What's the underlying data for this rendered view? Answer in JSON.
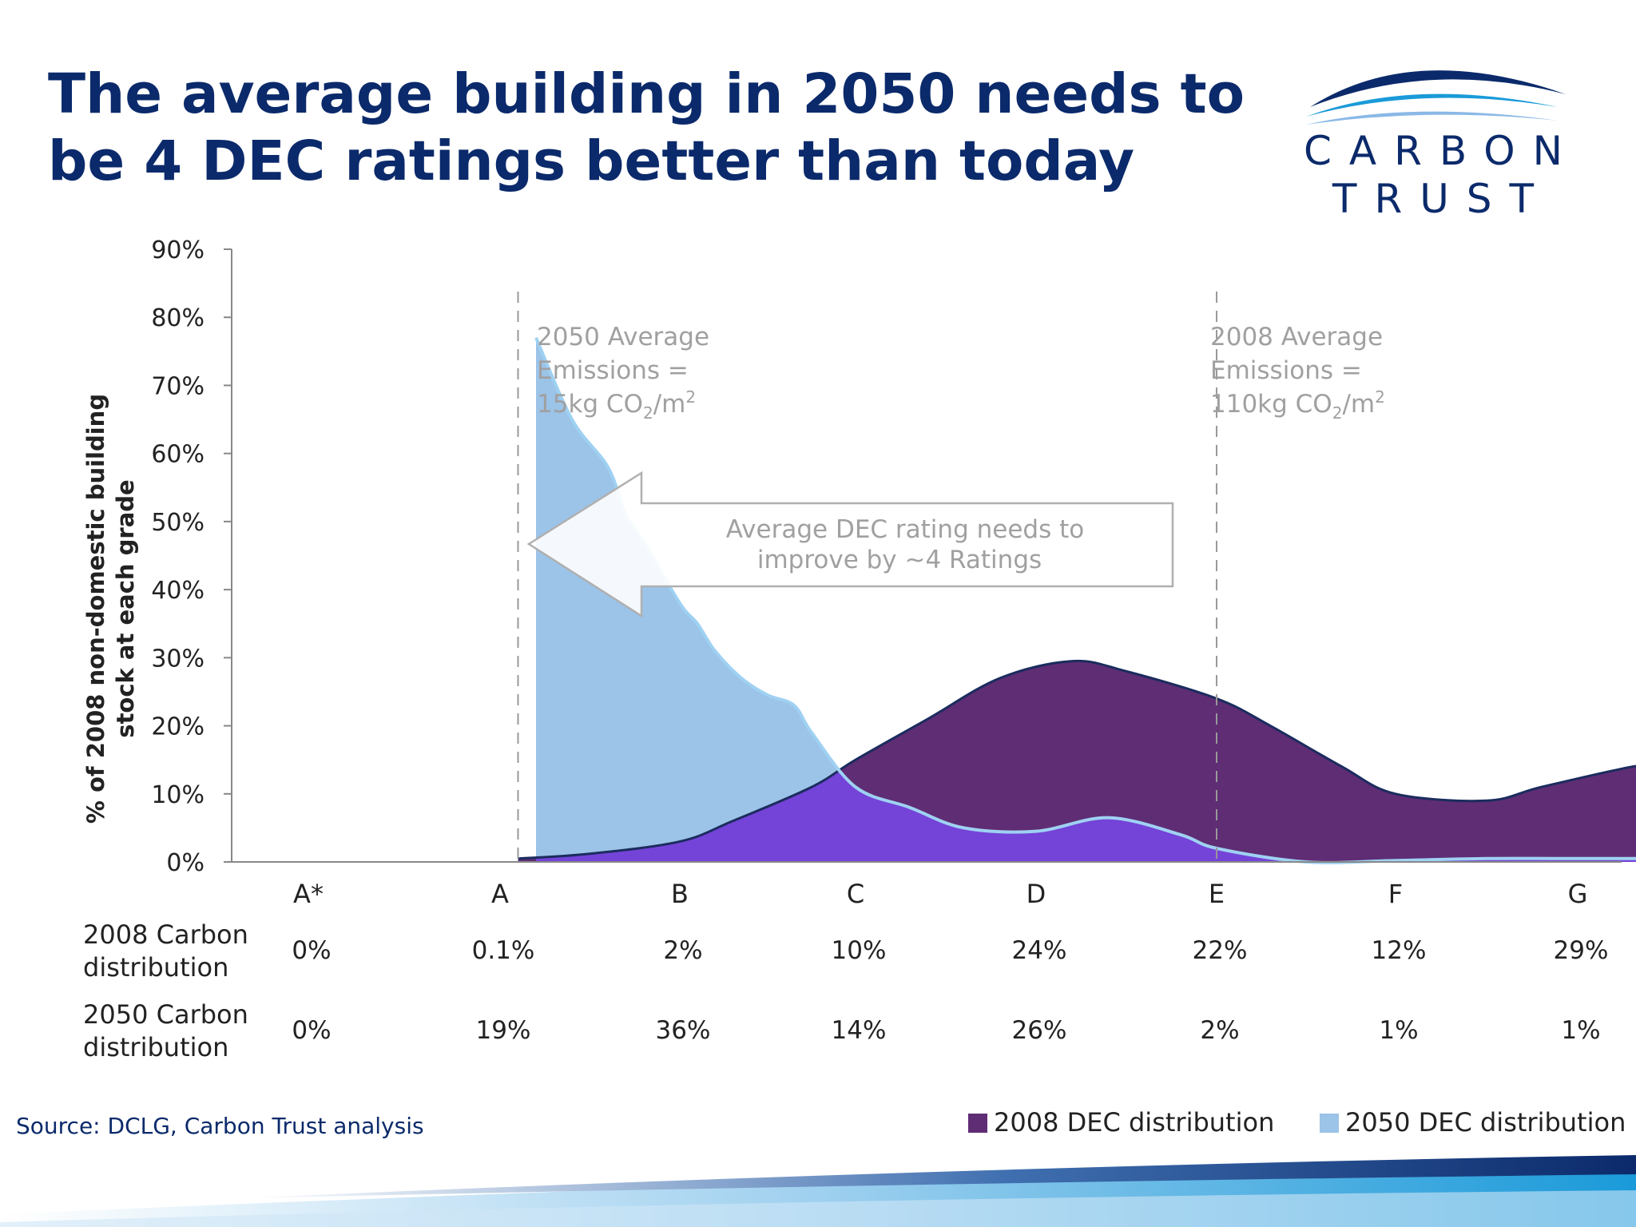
{
  "slide": {
    "title_line1": "The average building in 2050 needs to",
    "title_line2": "be 4 DEC ratings better than today",
    "source": "Source: DCLG, Carbon Trust analysis"
  },
  "logo": {
    "line1": "CARBON",
    "line2": "TRUST",
    "color_dark": "#0b2a6b",
    "color_mid": "#1a9ad9",
    "color_light": "#8ab8e6"
  },
  "chart_data": {
    "type": "area",
    "ylabel_line1": "% of 2008 non-domestic building",
    "ylabel_line2": "stock at each grade",
    "y_ticks": [
      "0%",
      "10%",
      "20%",
      "30%",
      "40%",
      "50%",
      "60%",
      "70%",
      "80%",
      "90%"
    ],
    "ylim": [
      0,
      90
    ],
    "categories": [
      "A*",
      "A",
      "B",
      "C",
      "D",
      "E",
      "F",
      "G"
    ],
    "grid": false,
    "legend_position": "bottom-right",
    "series": [
      {
        "name": "2008 DEC distribution",
        "color": "#5f2d74",
        "stroke": "#1b2c5e",
        "x": [
          1.1,
          1.5,
          2.0,
          2.3,
          2.75,
          3.0,
          3.4,
          3.8,
          4.2,
          4.5,
          5.0,
          5.3,
          5.7,
          6.0,
          6.5,
          6.8,
          7.3,
          7.6,
          8.0
        ],
        "values": [
          0.5,
          1.2,
          3,
          6,
          11,
          15,
          21,
          27,
          29.5,
          28,
          24,
          20,
          14,
          10,
          9,
          11,
          14,
          15,
          16
        ]
      },
      {
        "name": "2050 DEC distribution",
        "color": "#9cc3e8",
        "stroke": "#9fd1f2",
        "x": [
          1.2,
          1.4,
          1.6,
          1.7,
          1.8,
          2.0,
          2.1,
          2.2,
          2.35,
          2.5,
          2.65,
          2.75,
          3.0,
          3.3,
          3.6,
          4.0,
          4.4,
          4.8,
          5.0,
          5.5,
          6.0,
          6.5,
          7.0,
          8.0
        ],
        "values": [
          77,
          65,
          58,
          51,
          47,
          38,
          35,
          31,
          27,
          24.5,
          23,
          19,
          11,
          8,
          5,
          4.5,
          6.5,
          4,
          2,
          0,
          0.2,
          0.5,
          0.5,
          0.5
        ]
      }
    ],
    "overlap_color": "#7443d8",
    "annotations": {
      "left_l1": "2050 Average",
      "left_l2": "Emissions =",
      "left_l3a": "15kg CO",
      "left_sub": "2",
      "left_l3b": "/m",
      "left_sup": "2",
      "right_l1": "2008 Average",
      "right_l2": "Emissions =",
      "right_l3a": "110kg CO",
      "right_sub": "2",
      "right_l3b": "/m",
      "right_sup": "2",
      "arrow_l1": "Average DEC rating needs to",
      "arrow_l2": "improve by ~4 Ratings",
      "marker_left_x": 1.1,
      "marker_right_x": 5.0
    }
  },
  "table": {
    "row1_line1": "2008 Carbon",
    "row1_line2": "distribution",
    "row2_line1": "2050 Carbon",
    "row2_line2": "distribution",
    "values_2008": [
      "0%",
      "0.1%",
      "2%",
      "10%",
      "24%",
      "22%",
      "12%",
      "29%"
    ],
    "values_2050": [
      "0%",
      "19%",
      "36%",
      "14%",
      "26%",
      "2%",
      "1%",
      "1%"
    ]
  },
  "legend": {
    "item1": "2008 DEC distribution",
    "color1": "#5f2d74",
    "item2": "2050 DEC distribution",
    "color2": "#9cc3e8"
  }
}
